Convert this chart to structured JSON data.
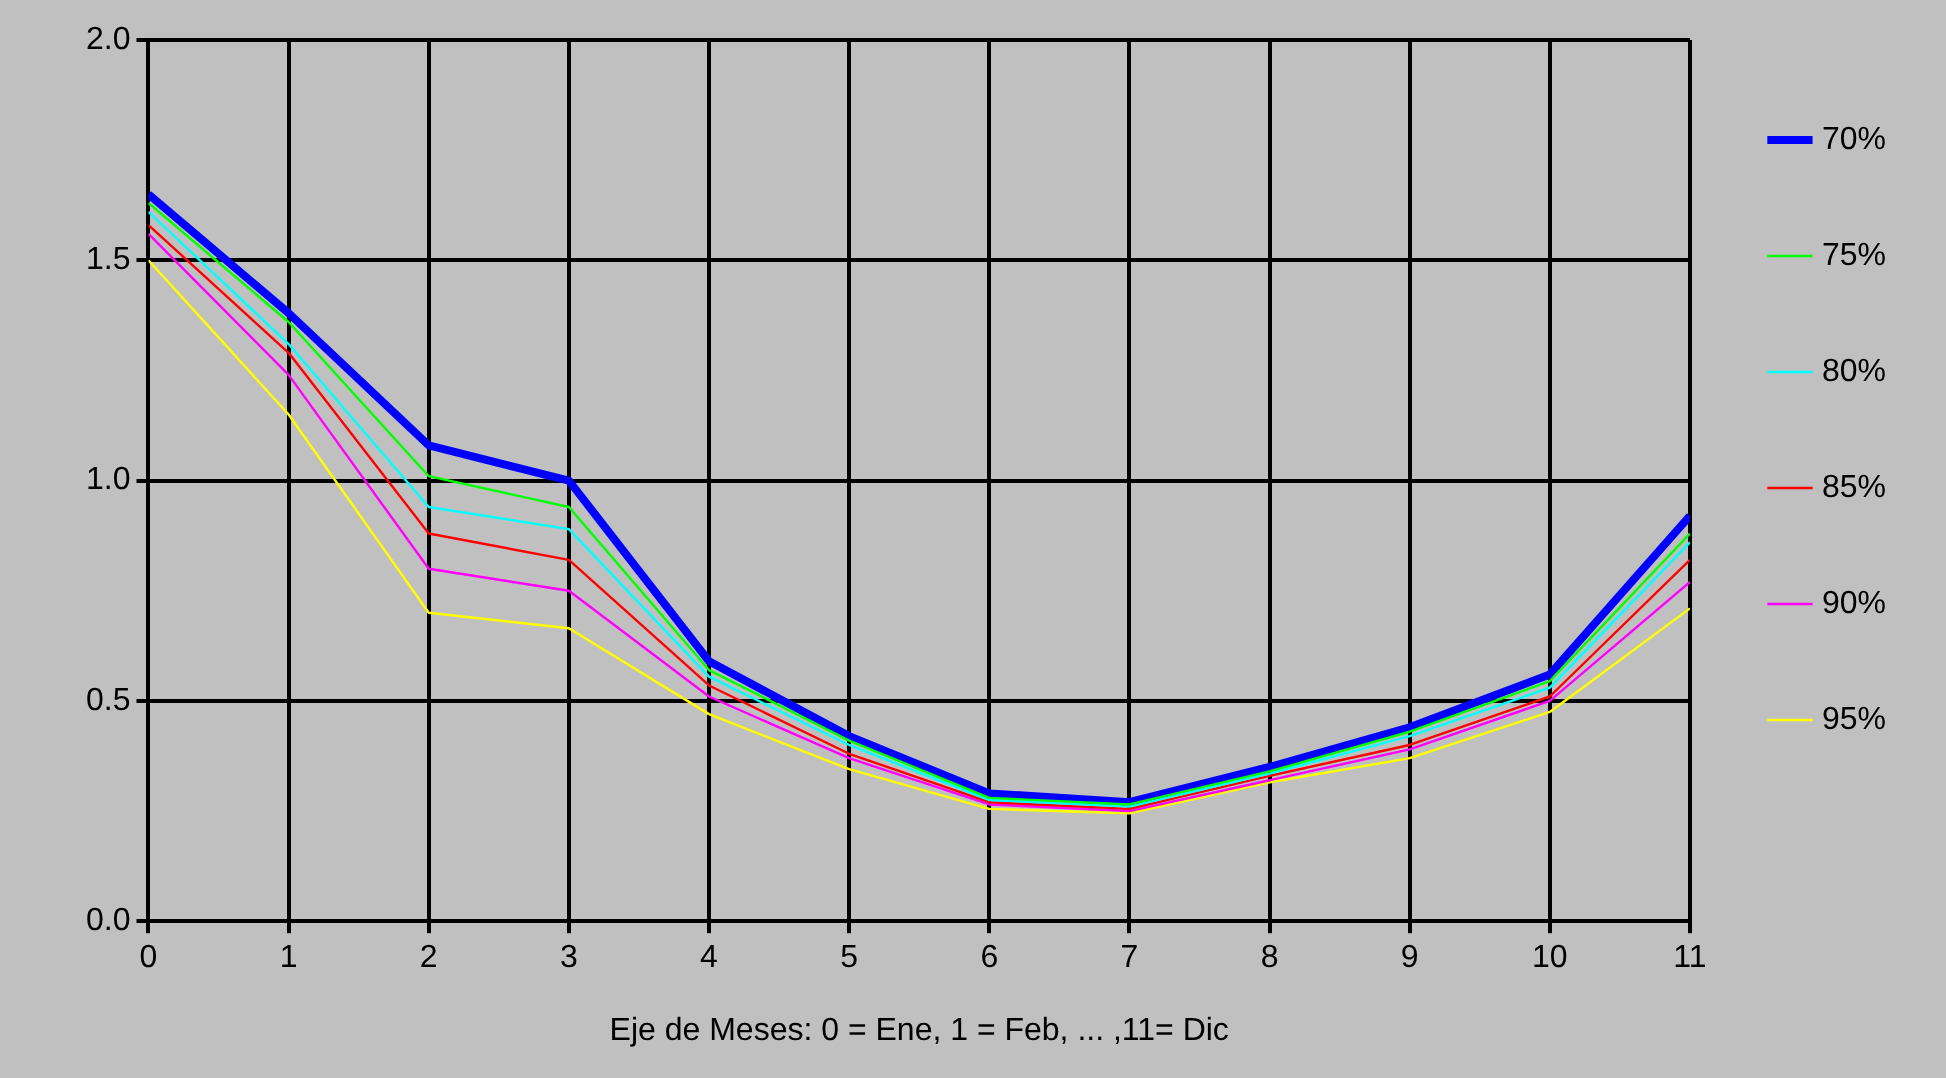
{
  "chart_data": {
    "type": "line",
    "xlabel": "Eje de Meses: 0 = Ene, 1 = Feb, ... ,11= Dic",
    "x": [
      0,
      1,
      2,
      3,
      4,
      5,
      6,
      7,
      8,
      9,
      10,
      11
    ],
    "series": [
      {
        "name": "70%",
        "color": "#0000ff",
        "values": [
          1.65,
          1.38,
          1.08,
          1.0,
          0.59,
          0.42,
          0.29,
          0.27,
          0.35,
          0.44,
          0.56,
          0.92
        ]
      },
      {
        "name": "75%",
        "color": "#00ff00",
        "values": [
          1.63,
          1.36,
          1.01,
          0.94,
          0.57,
          0.41,
          0.28,
          0.265,
          0.34,
          0.43,
          0.545,
          0.88
        ]
      },
      {
        "name": "80%",
        "color": "#00ffff",
        "values": [
          1.61,
          1.31,
          0.94,
          0.89,
          0.555,
          0.4,
          0.275,
          0.26,
          0.335,
          0.42,
          0.53,
          0.86
        ]
      },
      {
        "name": "85%",
        "color": "#ff0000",
        "values": [
          1.58,
          1.29,
          0.88,
          0.82,
          0.535,
          0.38,
          0.27,
          0.255,
          0.33,
          0.4,
          0.51,
          0.82
        ]
      },
      {
        "name": "90%",
        "color": "#ff00ff",
        "values": [
          1.56,
          1.24,
          0.8,
          0.75,
          0.51,
          0.37,
          0.265,
          0.25,
          0.32,
          0.39,
          0.5,
          0.77
        ]
      },
      {
        "name": "95%",
        "color": "#ffff00",
        "values": [
          1.5,
          1.15,
          0.7,
          0.665,
          0.47,
          0.345,
          0.255,
          0.245,
          0.315,
          0.37,
          0.475,
          0.71
        ]
      }
    ],
    "xlim": [
      0,
      11
    ],
    "xticks": [
      0,
      1,
      2,
      3,
      4,
      5,
      6,
      7,
      8,
      9,
      10,
      11
    ],
    "ylim": [
      0,
      2
    ],
    "yticks": [
      {
        "value": 0,
        "label": "0.0"
      },
      {
        "value": 0.5,
        "label": "0.5"
      },
      {
        "value": 1,
        "label": "1.0"
      },
      {
        "value": 1.5,
        "label": "1.5"
      },
      {
        "value": 2,
        "label": "2.0"
      }
    ],
    "grid": true,
    "legend": "right",
    "marker": "none",
    "line_style": "solid"
  }
}
